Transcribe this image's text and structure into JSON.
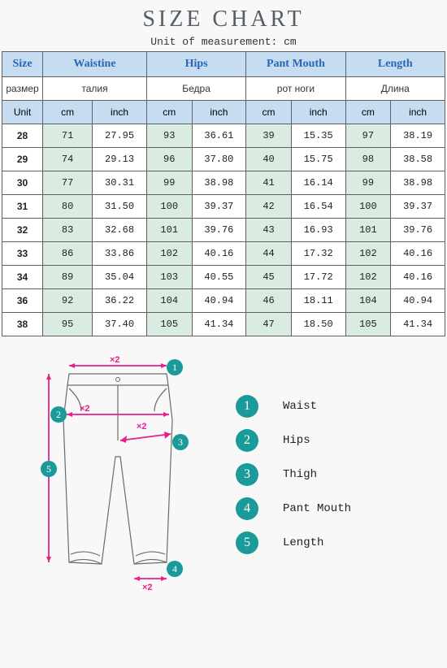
{
  "title": "SIZE CHART",
  "subtitle": "Unit of measurement: cm",
  "colors": {
    "header_bg": "#c5dcf1",
    "header_fg": "#2b65b7",
    "cm_bg": "#daebe1",
    "border": "#606060",
    "accent": "#e91e8c",
    "badge_bg": "#1b9a9a",
    "page_bg": "#f8f8f8"
  },
  "table": {
    "column_widths_pct": [
      9,
      11,
      12,
      10,
      12,
      10,
      12,
      10,
      12
    ],
    "header1": [
      "Size",
      "Waistine",
      "Hips",
      "Pant Mouth",
      "Length"
    ],
    "header2": [
      "размер",
      "талия",
      "Бедра",
      "рот ноги",
      "Длина"
    ],
    "header3": [
      "Unit",
      "cm",
      "inch",
      "cm",
      "inch",
      "cm",
      "inch",
      "cm",
      "inch"
    ],
    "rows": [
      [
        "28",
        "71",
        "27.95",
        "93",
        "36.61",
        "39",
        "15.35",
        "97",
        "38.19"
      ],
      [
        "29",
        "74",
        "29.13",
        "96",
        "37.80",
        "40",
        "15.75",
        "98",
        "38.58"
      ],
      [
        "30",
        "77",
        "30.31",
        "99",
        "38.98",
        "41",
        "16.14",
        "99",
        "38.98"
      ],
      [
        "31",
        "80",
        "31.50",
        "100",
        "39.37",
        "42",
        "16.54",
        "100",
        "39.37"
      ],
      [
        "32",
        "83",
        "32.68",
        "101",
        "39.76",
        "43",
        "16.93",
        "101",
        "39.76"
      ],
      [
        "33",
        "86",
        "33.86",
        "102",
        "40.16",
        "44",
        "17.32",
        "102",
        "40.16"
      ],
      [
        "34",
        "89",
        "35.04",
        "103",
        "40.55",
        "45",
        "17.72",
        "102",
        "40.16"
      ],
      [
        "36",
        "92",
        "36.22",
        "104",
        "40.94",
        "46",
        "18.11",
        "104",
        "40.94"
      ],
      [
        "38",
        "95",
        "37.40",
        "105",
        "41.34",
        "47",
        "18.50",
        "105",
        "41.34"
      ]
    ]
  },
  "diagram": {
    "annotations_x2": "×2",
    "badges": [
      "1",
      "2",
      "3",
      "4",
      "5"
    ],
    "legend": [
      {
        "n": "1",
        "label": "Waist"
      },
      {
        "n": "2",
        "label": "Hips"
      },
      {
        "n": "3",
        "label": "Thigh"
      },
      {
        "n": "4",
        "label": " Pant  Mouth"
      },
      {
        "n": "5",
        "label": "Length"
      }
    ]
  }
}
